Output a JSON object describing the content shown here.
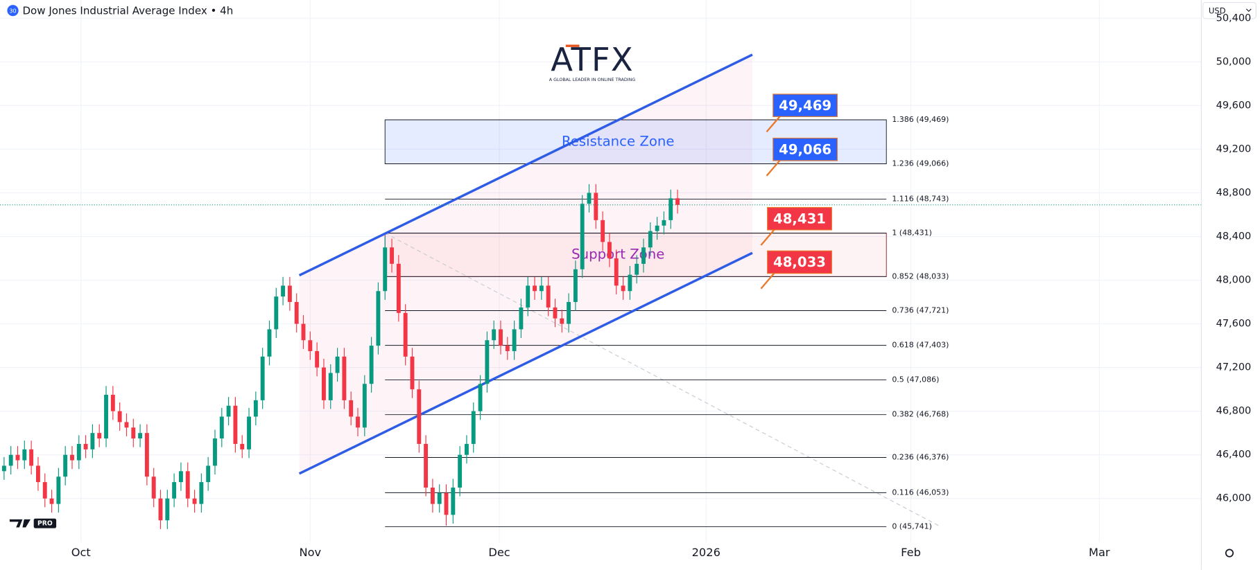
{
  "chart_data": {
    "type": "candlestick",
    "title": "Dow Jones Industrial Average Index • 4h",
    "symbol_badge": "30",
    "currency": "USD",
    "logo": "ATFX",
    "logo_tagline": "A GLOBAL LEADER IN ONLINE TRADING",
    "watermark": "PRO",
    "colors": {
      "up": "#089981",
      "down": "#f23645"
    },
    "xlim": [
      -0.6,
      176
    ],
    "xticks": [
      {
        "value": 11.3,
        "label": "Oct"
      },
      {
        "value": 45,
        "label": "Nov"
      },
      {
        "value": 72.8,
        "label": "Dec"
      },
      {
        "value": 103.2,
        "label": "2026"
      },
      {
        "value": 133.3,
        "label": "Feb"
      },
      {
        "value": 161,
        "label": "Mar"
      }
    ],
    "ylim": [
      45600,
      50566
    ],
    "yticks": [
      {
        "value": 46000,
        "label": "46,000"
      },
      {
        "value": 46400,
        "label": "46,400"
      },
      {
        "value": 46800,
        "label": "46,800"
      },
      {
        "value": 47200,
        "label": "47,200"
      },
      {
        "value": 47600,
        "label": "47,600"
      },
      {
        "value": 48000,
        "label": "48,000"
      },
      {
        "value": 48400,
        "label": "48,400"
      },
      {
        "value": 48800,
        "label": "48,800"
      },
      {
        "value": 49200,
        "label": "49,200"
      },
      {
        "value": 49600,
        "label": "49,600"
      },
      {
        "value": 50000,
        "label": "50,000"
      },
      {
        "value": 50400,
        "label": "50,400"
      }
    ],
    "candles": [
      [
        46250,
        46380,
        46170,
        46300
      ],
      [
        46300,
        46480,
        46220,
        46400
      ],
      [
        46400,
        46480,
        46270,
        46350
      ],
      [
        46350,
        46530,
        46270,
        46450
      ],
      [
        46450,
        46530,
        46220,
        46300
      ],
      [
        46300,
        46380,
        46070,
        46150
      ],
      [
        46150,
        46230,
        45920,
        46000
      ],
      [
        46000,
        46080,
        45870,
        45950
      ],
      [
        45950,
        46280,
        45870,
        46200
      ],
      [
        46200,
        46480,
        46120,
        46400
      ],
      [
        46400,
        46480,
        46270,
        46350
      ],
      [
        46350,
        46580,
        46270,
        46500
      ],
      [
        46500,
        46580,
        46370,
        46450
      ],
      [
        46450,
        46680,
        46370,
        46600
      ],
      [
        46600,
        46680,
        46470,
        46550
      ],
      [
        46550,
        47030,
        46470,
        46950
      ],
      [
        46950,
        47030,
        46720,
        46800
      ],
      [
        46800,
        46880,
        46620,
        46700
      ],
      [
        46700,
        46780,
        46570,
        46650
      ],
      [
        46650,
        46730,
        46470,
        46550
      ],
      [
        46550,
        46680,
        46470,
        46600
      ],
      [
        46600,
        46680,
        46120,
        46200
      ],
      [
        46200,
        46280,
        45920,
        46000
      ],
      [
        46000,
        46080,
        45720,
        45800
      ],
      [
        45800,
        46080,
        45720,
        46000
      ],
      [
        46000,
        46230,
        45920,
        46150
      ],
      [
        46150,
        46330,
        46070,
        46250
      ],
      [
        46250,
        46330,
        45920,
        46000
      ],
      [
        46000,
        46080,
        45870,
        45950
      ],
      [
        45950,
        46230,
        45870,
        46150
      ],
      [
        46150,
        46380,
        46070,
        46300
      ],
      [
        46300,
        46630,
        46220,
        46550
      ],
      [
        46550,
        46830,
        46470,
        46750
      ],
      [
        46750,
        46930,
        46670,
        46850
      ],
      [
        46850,
        46930,
        46420,
        46500
      ],
      [
        46500,
        46580,
        46370,
        46450
      ],
      [
        46450,
        46830,
        46370,
        46750
      ],
      [
        46750,
        46980,
        46670,
        46900
      ],
      [
        46900,
        47380,
        46820,
        47300
      ],
      [
        47300,
        47630,
        47220,
        47550
      ],
      [
        47550,
        47930,
        47470,
        47850
      ],
      [
        47850,
        48030,
        47770,
        47950
      ],
      [
        47950,
        48030,
        47720,
        47800
      ],
      [
        47800,
        47880,
        47520,
        47600
      ],
      [
        47600,
        47680,
        47370,
        47450
      ],
      [
        47450,
        47530,
        47270,
        47350
      ],
      [
        47350,
        47430,
        47120,
        47200
      ],
      [
        47200,
        47280,
        46820,
        46900
      ],
      [
        46900,
        47230,
        46820,
        47150
      ],
      [
        47150,
        47380,
        47070,
        47300
      ],
      [
        47300,
        47380,
        46820,
        46900
      ],
      [
        46900,
        46980,
        46670,
        46750
      ],
      [
        46750,
        46830,
        46570,
        46650
      ],
      [
        46650,
        47130,
        46570,
        47050
      ],
      [
        47050,
        47480,
        46970,
        47400
      ],
      [
        47400,
        47980,
        47320,
        47900
      ],
      [
        47900,
        48400,
        47820,
        48300
      ],
      [
        48300,
        48380,
        48070,
        48150
      ],
      [
        48150,
        48230,
        47620,
        47700
      ],
      [
        47700,
        47780,
        47220,
        47300
      ],
      [
        47300,
        47380,
        46920,
        47000
      ],
      [
        47000,
        47080,
        46420,
        46500
      ],
      [
        46500,
        46580,
        46020,
        46100
      ],
      [
        46100,
        46180,
        45870,
        45950
      ],
      [
        45950,
        46130,
        45870,
        46050
      ],
      [
        46050,
        46130,
        45750,
        45850
      ],
      [
        45850,
        46180,
        45770,
        46100
      ],
      [
        46100,
        46480,
        46020,
        46400
      ],
      [
        46400,
        46580,
        46320,
        46500
      ],
      [
        46500,
        46880,
        46420,
        46800
      ],
      [
        46800,
        47130,
        46720,
        47050
      ],
      [
        47050,
        47530,
        46970,
        47450
      ],
      [
        47450,
        47630,
        47370,
        47550
      ],
      [
        47550,
        47630,
        47320,
        47400
      ],
      [
        47400,
        47480,
        47270,
        47350
      ],
      [
        47350,
        47630,
        47270,
        47550
      ],
      [
        47550,
        47830,
        47470,
        47750
      ],
      [
        47750,
        48030,
        47670,
        47950
      ],
      [
        47950,
        48030,
        47820,
        47900
      ],
      [
        47900,
        48030,
        47820,
        47950
      ],
      [
        47950,
        48030,
        47670,
        47750
      ],
      [
        47750,
        47830,
        47570,
        47650
      ],
      [
        47650,
        47730,
        47520,
        47600
      ],
      [
        47600,
        47880,
        47520,
        47800
      ],
      [
        47800,
        48180,
        47720,
        48100
      ],
      [
        48100,
        48780,
        48020,
        48700
      ],
      [
        48700,
        48880,
        48620,
        48800
      ],
      [
        48800,
        48880,
        48470,
        48550
      ],
      [
        48550,
        48630,
        48270,
        48350
      ],
      [
        48350,
        48430,
        48120,
        48200
      ],
      [
        48200,
        48280,
        47870,
        47950
      ],
      [
        47950,
        48030,
        47820,
        47900
      ],
      [
        47900,
        48130,
        47820,
        48050
      ],
      [
        48050,
        48230,
        47970,
        48150
      ],
      [
        48150,
        48380,
        48070,
        48300
      ],
      [
        48300,
        48530,
        48220,
        48450
      ],
      [
        48450,
        48580,
        48370,
        48500
      ],
      [
        48500,
        48630,
        48420,
        48550
      ],
      [
        48550,
        48830,
        48470,
        48750
      ],
      [
        48750,
        48830,
        48610,
        48690
      ]
    ],
    "channel": {
      "color": "#2f5ce6",
      "upper": {
        "x": [
          43.4,
          110
        ],
        "y": [
          48044,
          50066
        ]
      },
      "lower": {
        "x": [
          43.4,
          110
        ],
        "y": [
          46228,
          48250
        ]
      }
    },
    "fib": {
      "x": [
        56,
        129.7
      ],
      "levels": [
        {
          "value": 49469,
          "label": "1.386 (49,469)"
        },
        {
          "value": 49066,
          "label": "1.236 (49,066)"
        },
        {
          "value": 48743,
          "label": "1.116 (48,743)"
        },
        {
          "value": 48431,
          "label": "1 (48,431)"
        },
        {
          "value": 48033,
          "label": "0.852 (48,033)"
        },
        {
          "value": 47721,
          "label": "0.736 (47,721)"
        },
        {
          "value": 47403,
          "label": "0.618 (47,403)"
        },
        {
          "value": 47086,
          "label": "0.5 (47,086)"
        },
        {
          "value": 46768,
          "label": "0.382 (46,768)"
        },
        {
          "value": 46376,
          "label": "0.236 (46,376)"
        },
        {
          "value": 46053,
          "label": "0.116 (46,053)"
        },
        {
          "value": 45741,
          "label": "0 (45,741)"
        }
      ]
    },
    "zones": [
      {
        "name": "Resistance Zone",
        "range": [
          49066,
          49469
        ],
        "color": "#2962ff",
        "fill": "rgba(41,98,255,0.12)"
      },
      {
        "name": "Support Zone",
        "range": [
          48033,
          48431
        ],
        "color": "#9c27b0",
        "fill": "rgba(242,54,69,0.06)"
      }
    ],
    "callouts": {
      "values": [
        49469,
        49066,
        48431,
        48033
      ],
      "value_labels": [
        "49,469",
        "49,066",
        "48,431",
        "48,033"
      ],
      "colors": [
        "#2962ff",
        "#2962ff",
        "#f23645",
        "#f23645"
      ]
    }
  }
}
